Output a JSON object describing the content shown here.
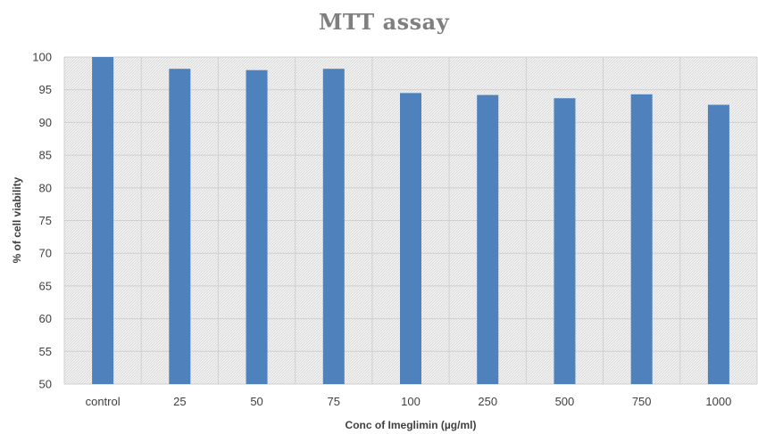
{
  "chart_data": {
    "type": "bar",
    "title": "MTT assay",
    "xlabel": "Conc of Imeglimin (µg/ml)",
    "ylabel": "% of cell viability",
    "categories": [
      "control",
      "25",
      "50",
      "75",
      "100",
      "250",
      "500",
      "750",
      "1000"
    ],
    "values": [
      100,
      98.2,
      98.0,
      98.2,
      94.5,
      94.2,
      93.7,
      94.3,
      92.7
    ],
    "ylim": [
      50,
      100
    ],
    "yticks": [
      50,
      55,
      60,
      65,
      70,
      75,
      80,
      85,
      90,
      95,
      100
    ],
    "grid": true,
    "legend": "none",
    "colors": {
      "bar": "#4f81bd",
      "plot_background": "#f2f2f2",
      "pattern": "#d4d4d4",
      "gridline": "#d0d0d0",
      "title": "#7f7f7f",
      "text": "#404040"
    }
  }
}
